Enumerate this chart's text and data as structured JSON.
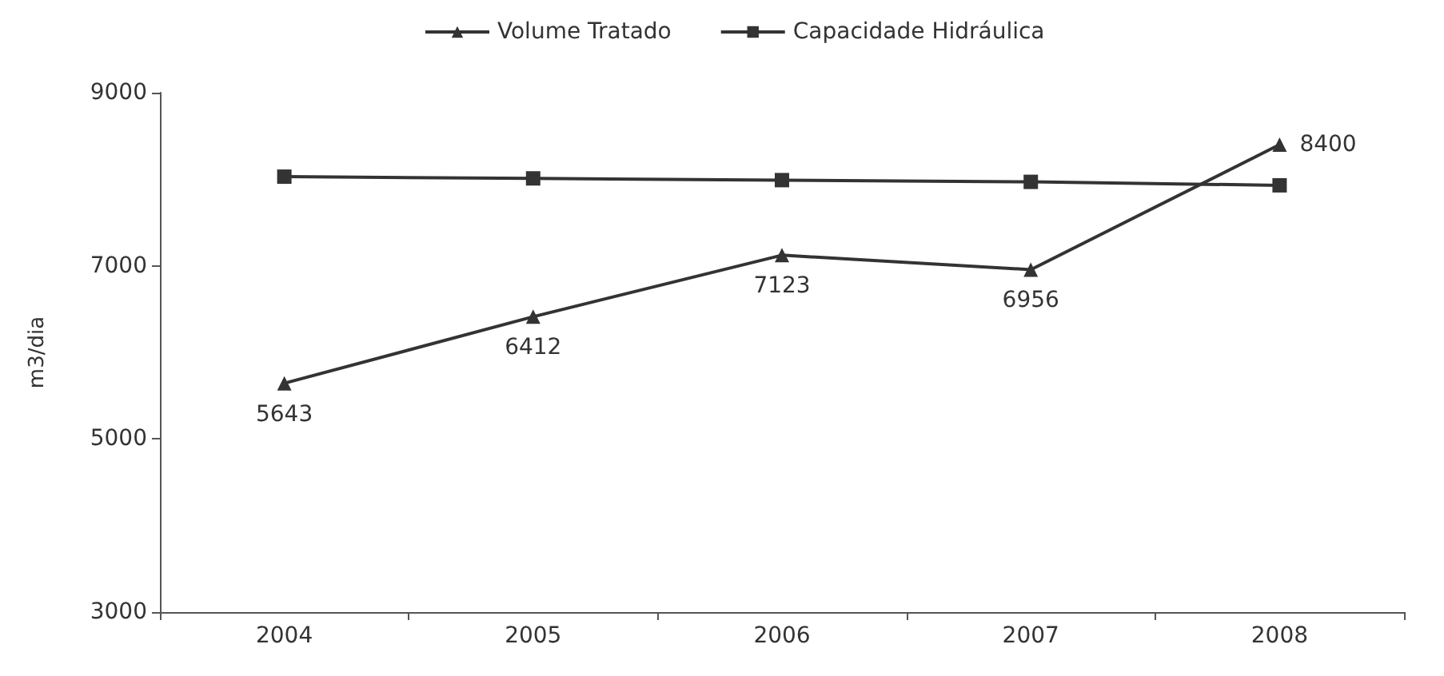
{
  "chart_data": {
    "type": "line",
    "ylabel": "m3/dia",
    "categories": [
      "2004",
      "2005",
      "2006",
      "2007",
      "2008"
    ],
    "series": [
      {
        "name": "Volume Tratado",
        "color": "#333333",
        "marker": "triangle",
        "values": [
          5643,
          6412,
          7123,
          6956,
          8400
        ],
        "value_labels": [
          "5643",
          "6412",
          "7123",
          "6956",
          "8400"
        ]
      },
      {
        "name": "Capacidade Hidráulica",
        "color": "#333333",
        "marker": "square",
        "values": [
          8030,
          8010,
          7990,
          7970,
          7930
        ]
      }
    ],
    "ylim": [
      3000,
      9000
    ],
    "yticks": [
      3000,
      5000,
      7000,
      9000
    ],
    "grid": false,
    "legend": "top"
  }
}
